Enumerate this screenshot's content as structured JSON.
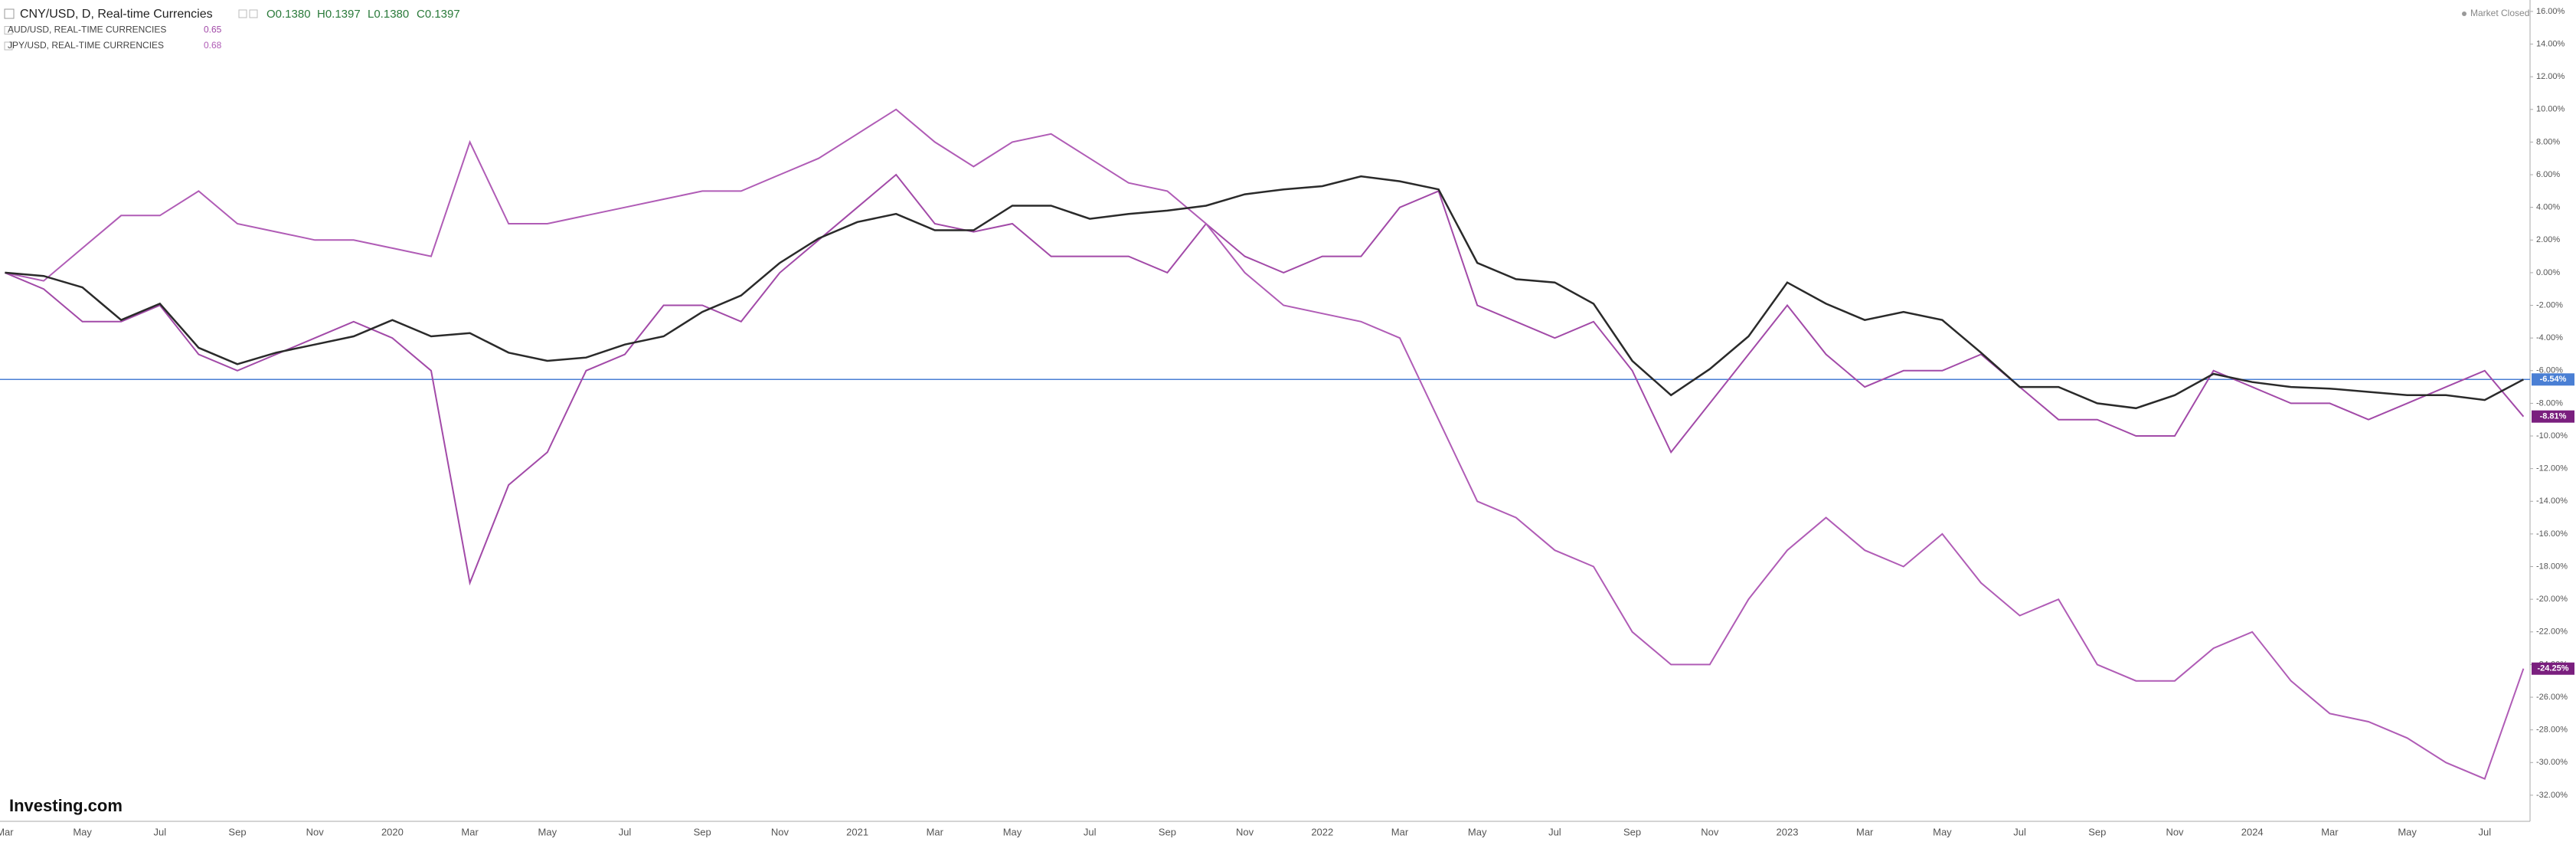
{
  "header": {
    "symbol": "CNY/USD, D, Real-time Currencies",
    "open": "O0.1380",
    "high": "H0.1397",
    "low": "L0.1380",
    "close": "C0.1397",
    "status": "Market Closed",
    "brand": "Investing.com"
  },
  "chart_data": {
    "type": "line",
    "categories": [
      "Mar",
      null,
      "May",
      null,
      "Jul",
      null,
      "Sep",
      null,
      "Nov",
      null,
      "2020",
      null,
      "Mar",
      null,
      "May",
      null,
      "Jul",
      null,
      "Sep",
      null,
      "Nov",
      null,
      "2021",
      null,
      "Mar",
      null,
      "May",
      null,
      "Jul",
      null,
      "Sep",
      null,
      "Nov",
      null,
      "2022",
      null,
      "Mar",
      null,
      "May",
      null,
      "Jul",
      null,
      "Sep",
      null,
      "Nov",
      null,
      "2023",
      null,
      "Mar",
      null,
      "May",
      null,
      "Jul",
      null,
      "Sep",
      null,
      "Nov",
      null,
      "2024",
      null,
      "Mar",
      null,
      "May",
      null,
      "Jul",
      null
    ],
    "series": [
      {
        "name": "CNY/USD, D, Real-time Currencies",
        "color": "#2a2a2a",
        "values": [
          0,
          -0.2,
          -0.9,
          -2.9,
          -1.9,
          -4.6,
          -5.6,
          -4.9,
          -4.4,
          -3.9,
          -2.9,
          -3.9,
          -3.7,
          -4.9,
          -5.4,
          -5.2,
          -4.4,
          -3.9,
          -2.4,
          -1.4,
          0.6,
          2.1,
          3.1,
          3.6,
          2.6,
          2.6,
          4.1,
          4.1,
          3.3,
          3.6,
          3.8,
          4.1,
          4.8,
          5.1,
          5.3,
          5.9,
          5.6,
          5.1,
          0.6,
          -0.4,
          -0.6,
          -1.9,
          -5.4,
          -7.5,
          -5.9,
          -3.9,
          -0.6,
          -1.9,
          -2.9,
          -2.4,
          -2.9,
          -4.9,
          -7.0,
          -7.0,
          -8.0,
          -8.3,
          -7.5,
          -6.2,
          -6.7,
          -7.0,
          -7.1,
          -7.3,
          -7.5,
          -7.5,
          -7.8,
          -6.54
        ]
      },
      {
        "name": "AUD/USD, REAL-TIME CURRENCIES",
        "color": "#a24aa8",
        "last": 0.65,
        "values": [
          0,
          -1,
          -3,
          -3,
          -2,
          -5,
          -6,
          -5,
          -4,
          -3,
          -4,
          -6,
          -19,
          -13,
          -11,
          -6,
          -5,
          -2,
          -2,
          -3,
          0,
          2,
          4,
          6,
          3,
          2.5,
          3,
          1,
          1,
          1,
          0,
          3,
          1,
          0,
          1,
          1,
          4,
          5,
          -2,
          -3,
          -4,
          -3,
          -6,
          -11,
          -8,
          -5,
          -2,
          -5,
          -7,
          -6,
          -6,
          -5,
          -7,
          -9,
          -9,
          -10,
          -10,
          -6,
          -7,
          -8,
          -8,
          -9,
          -8,
          -7,
          -6,
          -8.81
        ],
        "end_label": {
          "value": -8.81,
          "label": "-8.81%"
        }
      },
      {
        "name": "JPY/USD, REAL-TIME CURRENCIES",
        "color": "#b05cb6",
        "last": 0.68,
        "values": [
          0,
          -0.5,
          1.5,
          3.5,
          3.5,
          5,
          3,
          2.5,
          2,
          2,
          1.5,
          1,
          8,
          3,
          3,
          3.5,
          4,
          4.5,
          5,
          5,
          6,
          7,
          8.5,
          10,
          8,
          6.5,
          8,
          8.5,
          7,
          5.5,
          5,
          3,
          0,
          -2,
          -2.5,
          -3,
          -4,
          -9,
          -14,
          -15,
          -17,
          -18,
          -22,
          -24,
          -24,
          -20,
          -17,
          -15,
          -17,
          -18,
          -16,
          -19,
          -21,
          -20,
          -24,
          -25,
          -25,
          -23,
          -22,
          -25,
          -27,
          -27.5,
          -28.5,
          -30,
          -31,
          -24.25
        ],
        "end_label": {
          "value": -24.25,
          "label": "-24.25%"
        }
      }
    ],
    "price_line": {
      "value": -6.54,
      "label": "-6.54%",
      "color": "#4a7fd4"
    },
    "ylim": [
      -33.6,
      16.7
    ],
    "yticks": [
      {
        "value": 16,
        "label": "16.00%"
      },
      {
        "value": 14,
        "label": "14.00%"
      },
      {
        "value": 12,
        "label": "12.00%"
      },
      {
        "value": 10,
        "label": "10.00%"
      },
      {
        "value": 8,
        "label": "8.00%"
      },
      {
        "value": 6,
        "label": "6.00%"
      },
      {
        "value": 4,
        "label": "4.00%"
      },
      {
        "value": 2,
        "label": "2.00%"
      },
      {
        "value": 0,
        "label": "0.00%"
      },
      {
        "value": -2,
        "label": "-2.00%"
      },
      {
        "value": -4,
        "label": "-4.00%"
      },
      {
        "value": -6,
        "label": "-6.00%"
      },
      {
        "value": -8,
        "label": "-8.00%"
      },
      {
        "value": -10,
        "label": "-10.00%"
      },
      {
        "value": -12,
        "label": "-12.00%"
      },
      {
        "value": -14,
        "label": "-14.00%"
      },
      {
        "value": -16,
        "label": "-16.00%"
      },
      {
        "value": -18,
        "label": "-18.00%"
      },
      {
        "value": -20,
        "label": "-20.00%"
      },
      {
        "value": -22,
        "label": "-22.00%"
      },
      {
        "value": -24,
        "label": "-24.00%"
      },
      {
        "value": -26,
        "label": "-26.00%"
      },
      {
        "value": -28,
        "label": "-28.00%"
      },
      {
        "value": -30,
        "label": "-30.00%"
      },
      {
        "value": -32,
        "label": "-32.00%"
      }
    ],
    "grid": false
  }
}
